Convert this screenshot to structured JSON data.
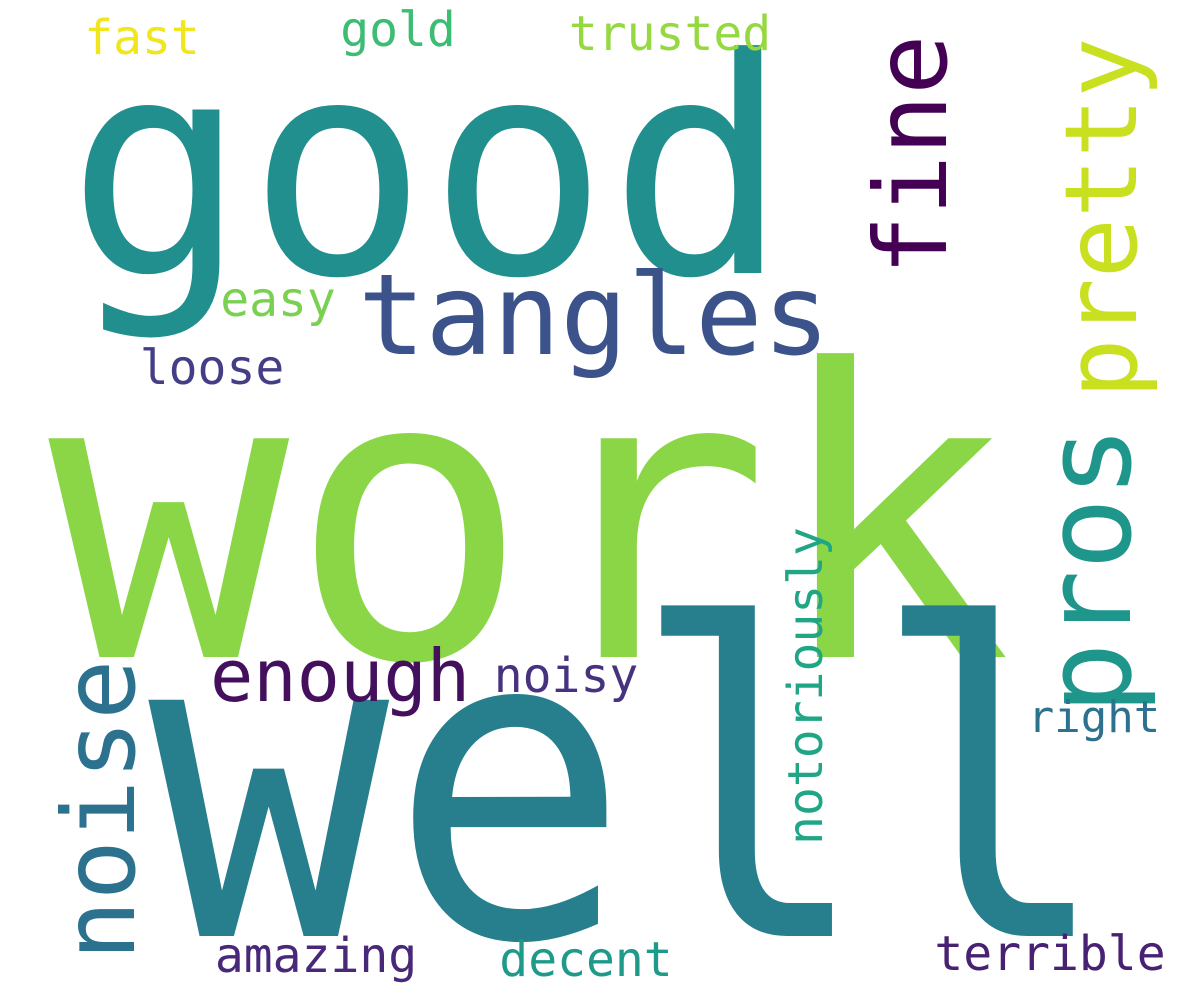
{
  "words": {
    "work": {
      "text": "work",
      "color": "#8bd646"
    },
    "well": {
      "text": "well",
      "color": "#277f8e"
    },
    "good": {
      "text": "good",
      "color": "#218f8d"
    },
    "tangles": {
      "text": "tangles",
      "color": "#3b528b"
    },
    "fine": {
      "text": "fine",
      "color": "#440154"
    },
    "pretty": {
      "text": "pretty",
      "color": "#c8e020"
    },
    "pros": {
      "text": "pros",
      "color": "#1f968b"
    },
    "noise": {
      "text": "noise",
      "color": "#2c728e"
    },
    "enough": {
      "text": "enough",
      "color": "#440f5d"
    },
    "noisy": {
      "text": "noisy",
      "color": "#46327e"
    },
    "notoriously": {
      "text": "notoriously",
      "color": "#21a685"
    },
    "right": {
      "text": "right",
      "color": "#2c728e"
    },
    "loose": {
      "text": "loose",
      "color": "#433e85"
    },
    "easy": {
      "text": "easy",
      "color": "#7ad151"
    },
    "fast": {
      "text": "fast",
      "color": "#f1e51d"
    },
    "gold": {
      "text": "gold",
      "color": "#3dbc74"
    },
    "trusted": {
      "text": "trusted",
      "color": "#95d840"
    },
    "amazing": {
      "text": "amazing",
      "color": "#482878"
    },
    "decent": {
      "text": "decent",
      "color": "#1f9a8a"
    },
    "terrible": {
      "text": "terrible",
      "color": "#482173"
    }
  }
}
